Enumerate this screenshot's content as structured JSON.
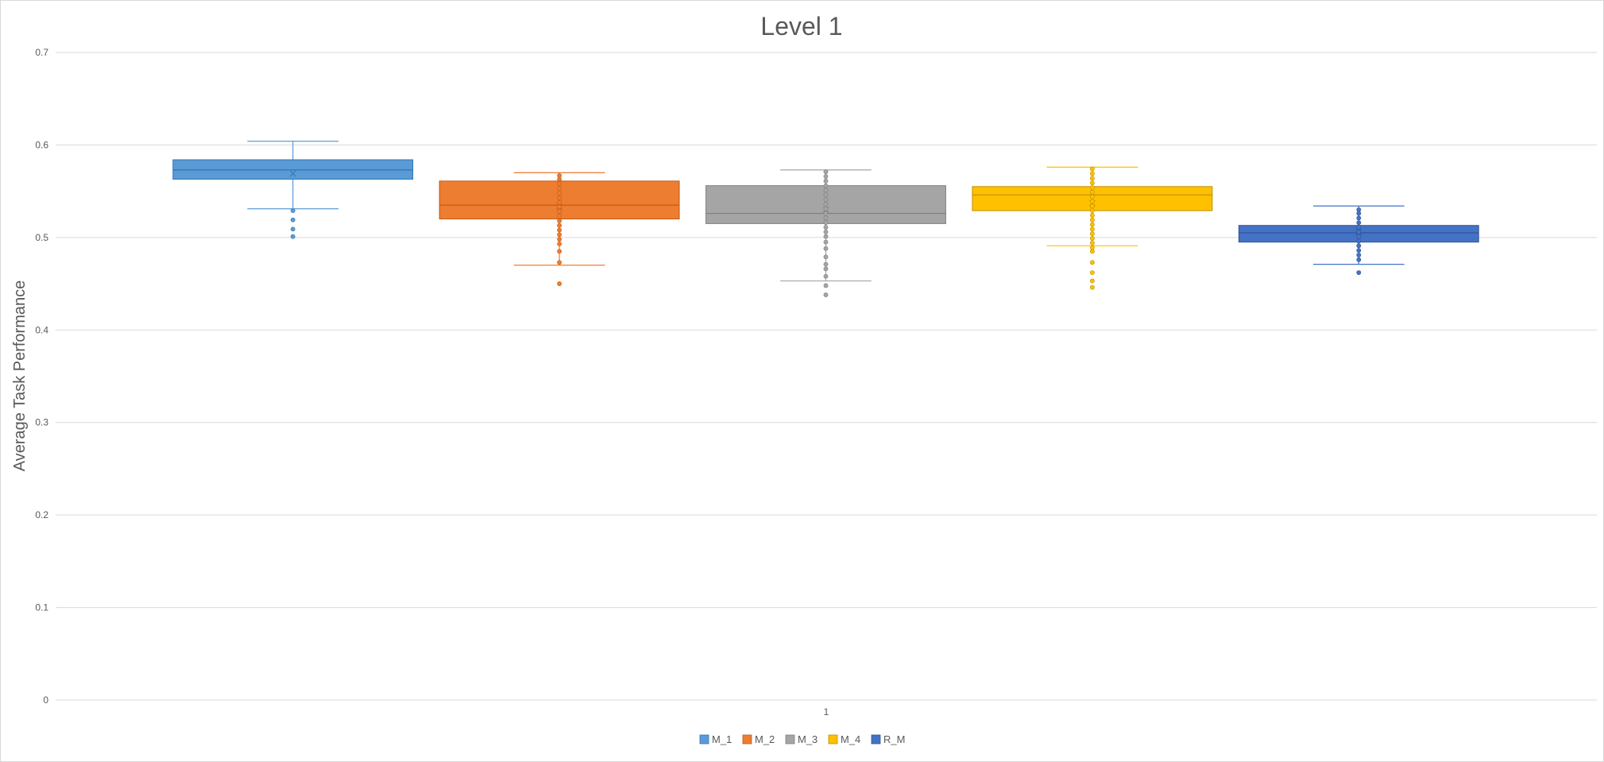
{
  "chart_data": {
    "type": "box",
    "title": "Level 1",
    "xlabel": "",
    "ylabel": "Average Task Performance",
    "categories": [
      "1"
    ],
    "ylim": [
      0,
      0.7
    ],
    "yticks": [
      "0",
      "0.1",
      "0.2",
      "0.3",
      "0.4",
      "0.5",
      "0.6",
      "0.7"
    ],
    "grid": true,
    "legend_position": "bottom",
    "series": [
      {
        "name": "M_1",
        "color": "#5B9BD5",
        "stroke": "#2E75B6",
        "whisker_low": 0.531,
        "q1": 0.563,
        "median": 0.573,
        "q3": 0.584,
        "whisker_high": 0.604,
        "mean": 0.569,
        "outliers": [
          0.501,
          0.509,
          0.519,
          0.529
        ]
      },
      {
        "name": "M_2",
        "color": "#ED7D31",
        "stroke": "#C55A11",
        "whisker_low": 0.47,
        "q1": 0.52,
        "median": 0.535,
        "q3": 0.561,
        "whisker_high": 0.57,
        "mean": 0.533,
        "outliers": [
          0.45,
          0.473,
          0.485,
          0.493,
          0.498,
          0.503,
          0.508,
          0.513,
          0.518,
          0.523,
          0.528,
          0.533,
          0.538,
          0.543,
          0.548,
          0.553,
          0.558,
          0.563,
          0.567
        ]
      },
      {
        "name": "M_3",
        "color": "#A5A5A5",
        "stroke": "#7F7F7F",
        "whisker_low": 0.453,
        "q1": 0.515,
        "median": 0.526,
        "q3": 0.556,
        "whisker_high": 0.573,
        "mean": 0.53,
        "outliers": [
          0.438,
          0.448,
          0.458,
          0.466,
          0.471,
          0.479,
          0.488,
          0.495,
          0.501,
          0.506,
          0.511,
          0.516,
          0.521,
          0.526,
          0.531,
          0.536,
          0.541,
          0.546,
          0.551,
          0.556,
          0.561,
          0.566,
          0.571
        ]
      },
      {
        "name": "M_4",
        "color": "#FFC000",
        "stroke": "#BF9000",
        "whisker_low": 0.491,
        "q1": 0.529,
        "median": 0.546,
        "q3": 0.555,
        "whisker_high": 0.576,
        "mean": 0.537,
        "outliers": [
          0.446,
          0.453,
          0.462,
          0.473,
          0.485,
          0.489,
          0.494,
          0.499,
          0.504,
          0.509,
          0.514,
          0.519,
          0.524,
          0.529,
          0.534,
          0.539,
          0.544,
          0.549,
          0.554,
          0.559,
          0.564,
          0.569,
          0.574
        ]
      },
      {
        "name": "R_M",
        "color": "#4472C4",
        "stroke": "#2F5597",
        "whisker_low": 0.471,
        "q1": 0.495,
        "median": 0.505,
        "q3": 0.513,
        "whisker_high": 0.534,
        "mean": 0.506,
        "outliers": [
          0.462,
          0.476,
          0.481,
          0.486,
          0.491,
          0.496,
          0.501,
          0.506,
          0.511,
          0.516,
          0.521,
          0.526,
          0.53
        ]
      }
    ]
  }
}
